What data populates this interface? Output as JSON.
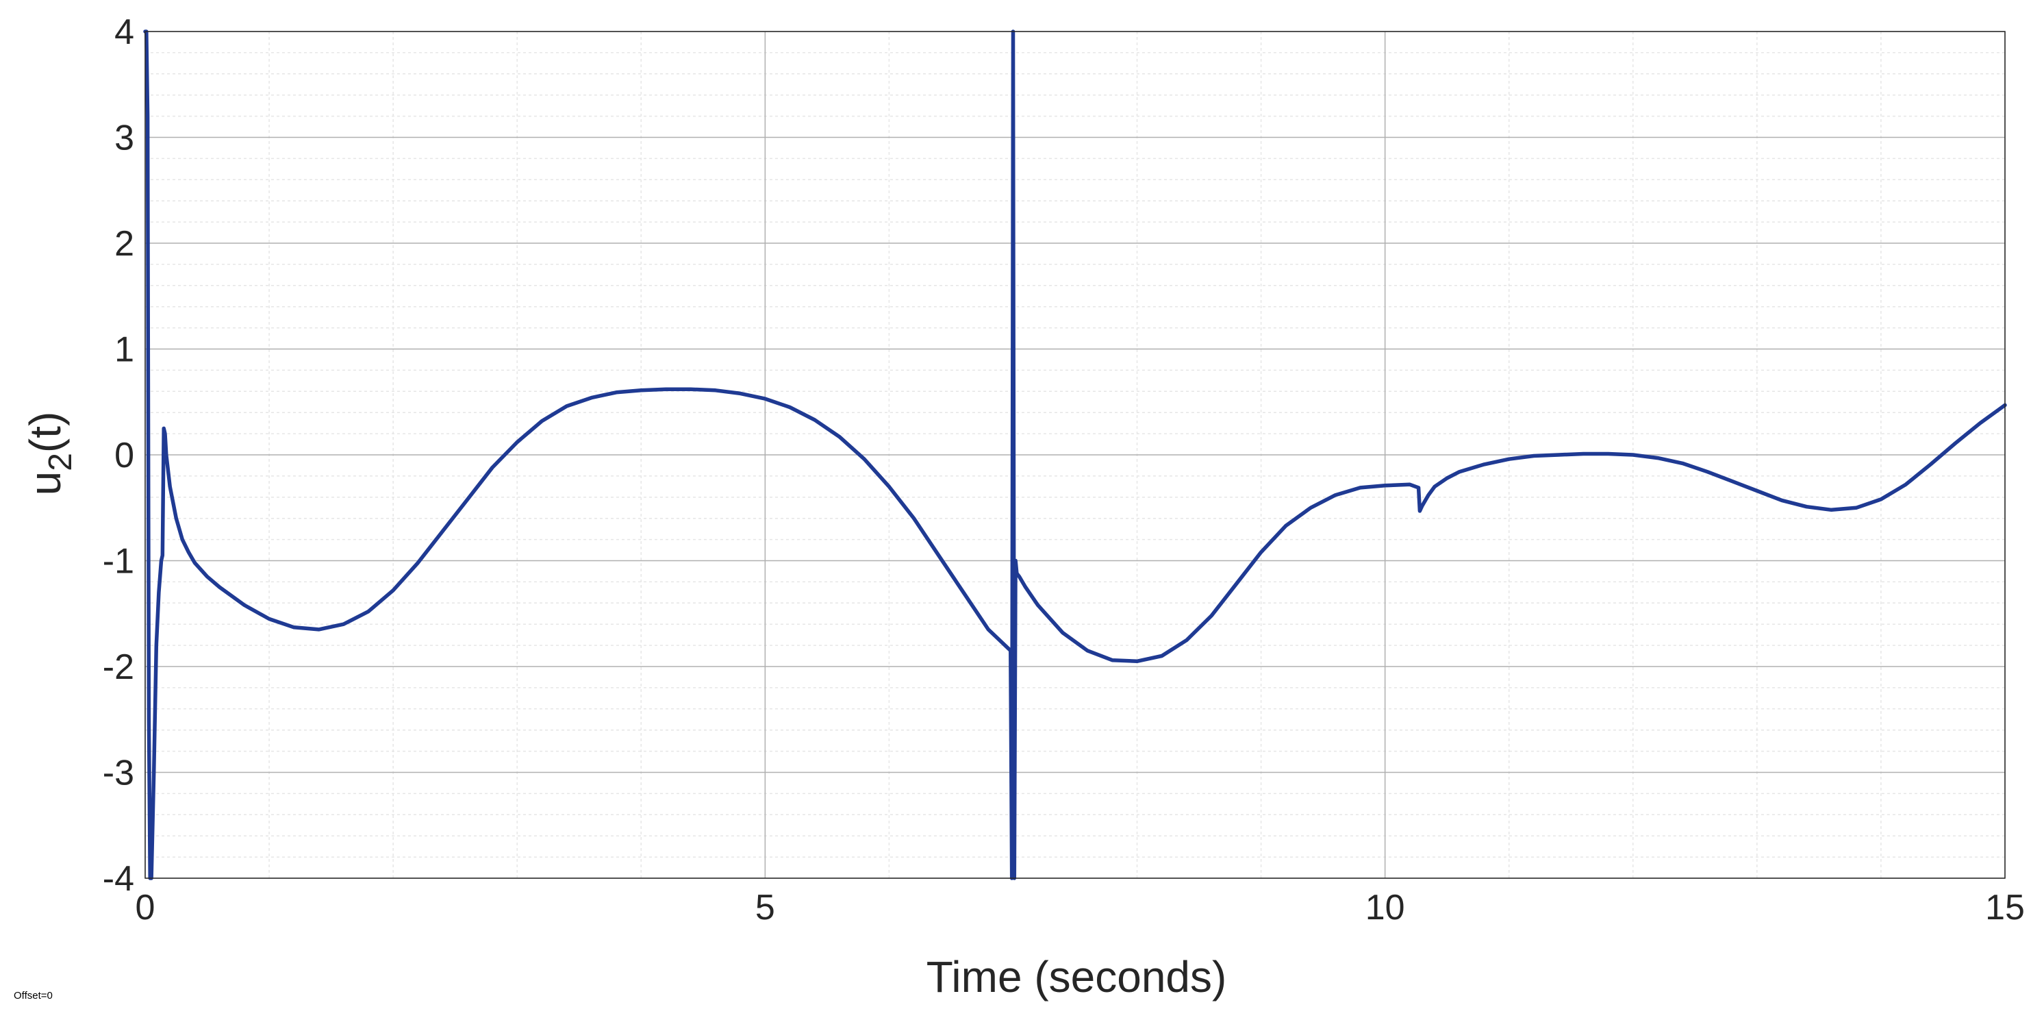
{
  "chart_data": {
    "type": "line",
    "xlabel": "Time (seconds)",
    "ylabel_main": "u",
    "ylabel_sub": "2",
    "ylabel_tail": "(t)",
    "xlim": [
      0,
      15
    ],
    "ylim": [
      -4,
      4
    ],
    "xticks": [
      "0",
      "5",
      "10",
      "15"
    ],
    "xtick_values": [
      0,
      5,
      10,
      15
    ],
    "yticks": [
      "4",
      "3",
      "2",
      "1",
      "0",
      "-1",
      "-2",
      "-3",
      "-4"
    ],
    "ytick_values": [
      4,
      3,
      2,
      1,
      0,
      -1,
      -2,
      -3,
      -4
    ],
    "grid": true,
    "minor_grid": true,
    "legend": "none",
    "offset_text": "Offset=0",
    "colors": {
      "line": "#1f3a93",
      "major_grid": "#b0b0b0",
      "minor_grid": "#e6e6e6",
      "axes": "#262626"
    },
    "series": [
      {
        "x": [
          0.0,
          0.01,
          0.02,
          0.03,
          0.04,
          0.05,
          0.07,
          0.09,
          0.11,
          0.13,
          0.14,
          0.15,
          0.16,
          0.17,
          0.2,
          0.25,
          0.3,
          0.35,
          0.4,
          0.5,
          0.6,
          0.8,
          1.0,
          1.2,
          1.4,
          1.6,
          1.8,
          2.0,
          2.2,
          2.4,
          2.6,
          2.8,
          3.0,
          3.2,
          3.4,
          3.6,
          3.8,
          4.0,
          4.2,
          4.4,
          4.6,
          4.8,
          5.0,
          5.2,
          5.4,
          5.6,
          5.8,
          6.0,
          6.2,
          6.4,
          6.6,
          6.8,
          6.98,
          6.99,
          7.0,
          7.01,
          7.02,
          7.03,
          7.05,
          7.1,
          7.2,
          7.4,
          7.6,
          7.8,
          8.0,
          8.2,
          8.4,
          8.6,
          8.8,
          9.0,
          9.2,
          9.4,
          9.6,
          9.8,
          10.0,
          10.2,
          10.27,
          10.28,
          10.3,
          10.35,
          10.4,
          10.5,
          10.6,
          10.8,
          11.0,
          11.2,
          11.4,
          11.6,
          11.8,
          12.0,
          12.2,
          12.4,
          12.6,
          12.8,
          13.0,
          13.2,
          13.4,
          13.6,
          13.8,
          14.0,
          14.2,
          14.4,
          14.6,
          14.8,
          15.0
        ],
        "y": [
          4.0,
          4.0,
          3.2,
          -2.5,
          -4.0,
          -4.0,
          -3.0,
          -1.8,
          -1.3,
          -1.0,
          -0.95,
          0.25,
          0.2,
          0.0,
          -0.3,
          -0.6,
          -0.8,
          -0.92,
          -1.02,
          -1.15,
          -1.25,
          -1.42,
          -1.55,
          -1.63,
          -1.65,
          -1.6,
          -1.48,
          -1.28,
          -1.02,
          -0.72,
          -0.42,
          -0.12,
          0.12,
          0.32,
          0.46,
          0.54,
          0.59,
          0.61,
          0.62,
          0.62,
          0.61,
          0.58,
          0.53,
          0.45,
          0.33,
          0.17,
          -0.04,
          -0.3,
          -0.6,
          -0.95,
          -1.3,
          -1.65,
          -1.85,
          -4.0,
          4.0,
          -4.0,
          -1.0,
          -1.12,
          -1.15,
          -1.25,
          -1.42,
          -1.68,
          -1.85,
          -1.94,
          -1.95,
          -1.9,
          -1.75,
          -1.52,
          -1.22,
          -0.92,
          -0.67,
          -0.5,
          -0.38,
          -0.31,
          -0.29,
          -0.28,
          -0.31,
          -0.53,
          -0.48,
          -0.38,
          -0.3,
          -0.22,
          -0.16,
          -0.09,
          -0.04,
          -0.01,
          0.0,
          0.01,
          0.01,
          0.0,
          -0.03,
          -0.08,
          -0.16,
          -0.25,
          -0.34,
          -0.43,
          -0.49,
          -0.52,
          -0.5,
          -0.42,
          -0.28,
          -0.09,
          0.11,
          0.3,
          0.47
        ]
      }
    ]
  }
}
